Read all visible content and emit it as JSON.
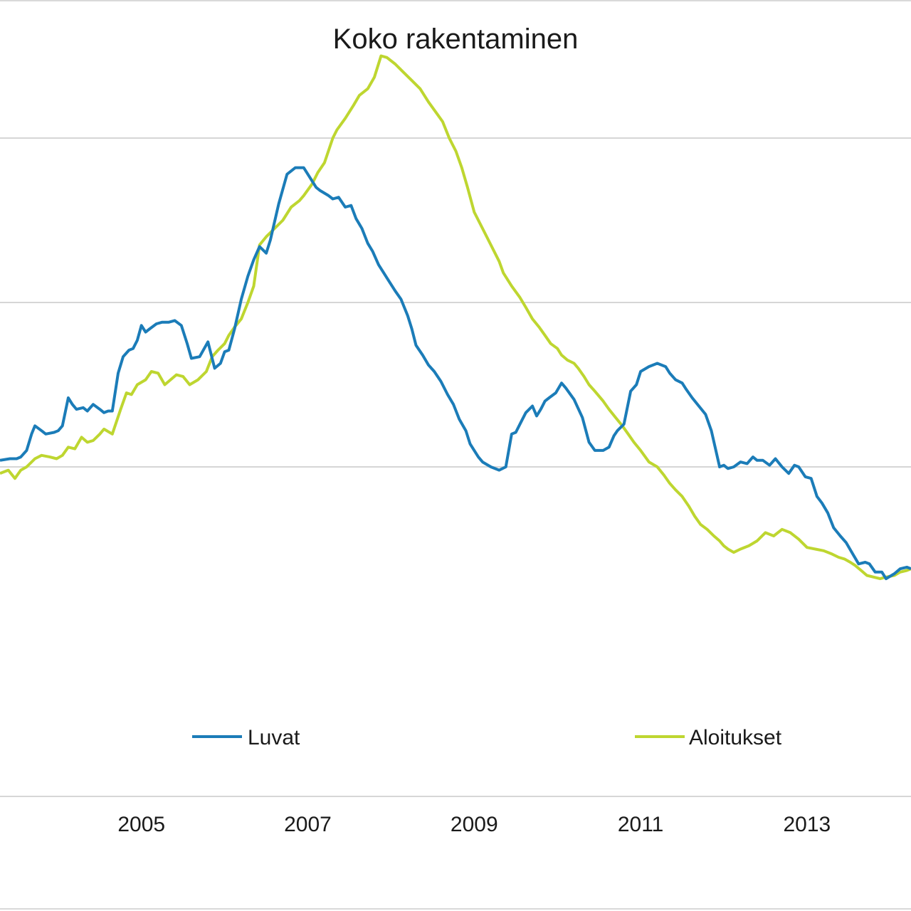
{
  "chart_data": {
    "type": "line",
    "title": "Koko rakentaminen",
    "x_tick_labels": [
      "2005",
      "2007",
      "2009",
      "2011",
      "2013"
    ],
    "x_tick_years": [
      2005,
      2007,
      2009,
      2011,
      2013
    ],
    "xlim": [
      2003.3,
      2014.25
    ],
    "ylim": [
      0,
      4
    ],
    "gridlines": [
      1,
      2,
      3,
      4
    ],
    "grid": true,
    "legend_position": "bottom",
    "colors": {
      "Luvat": "#1B7CB8",
      "Aloitukset": "#BED630"
    },
    "series": [
      {
        "name": "Luvat",
        "x": [
          2003.3,
          2003.42,
          2003.5,
          2003.55,
          2003.62,
          2003.68,
          2003.72,
          2003.8,
          2003.85,
          2003.95,
          2004.0,
          2004.05,
          2004.12,
          2004.17,
          2004.22,
          2004.3,
          2004.35,
          2004.42,
          2004.5,
          2004.55,
          2004.6,
          2004.65,
          2004.72,
          2004.78,
          2004.85,
          2004.9,
          2004.95,
          2005.0,
          2005.05,
          2005.1,
          2005.18,
          2005.25,
          2005.33,
          2005.4,
          2005.48,
          2005.55,
          2005.6,
          2005.7,
          2005.8,
          2005.88,
          2005.95,
          2006.0,
          2006.05,
          2006.12,
          2006.2,
          2006.28,
          2006.35,
          2006.42,
          2006.5,
          2006.55,
          2006.65,
          2006.75,
          2006.85,
          2006.95,
          2007.05,
          2007.1,
          2007.15,
          2007.25,
          2007.3,
          2007.37,
          2007.45,
          2007.52,
          2007.58,
          2007.65,
          2007.72,
          2007.78,
          2007.85,
          2007.95,
          2008.05,
          2008.12,
          2008.2,
          2008.25,
          2008.3,
          2008.38,
          2008.45,
          2008.52,
          2008.6,
          2008.68,
          2008.75,
          2008.82,
          2008.9,
          2008.95,
          2009.05,
          2009.1,
          2009.2,
          2009.3,
          2009.38,
          2009.45,
          2009.5,
          2009.57,
          2009.62,
          2009.7,
          2009.75,
          2009.8,
          2009.85,
          2009.9,
          2009.98,
          2010.05,
          2010.1,
          2010.2,
          2010.3,
          2010.38,
          2010.45,
          2010.55,
          2010.62,
          2010.68,
          2010.72,
          2010.8,
          2010.88,
          2010.95,
          2011.0,
          2011.1,
          2011.2,
          2011.3,
          2011.35,
          2011.42,
          2011.5,
          2011.55,
          2011.62,
          2011.7,
          2011.78,
          2011.85,
          2011.9,
          2011.95,
          2012.0,
          2012.05,
          2012.12,
          2012.2,
          2012.28,
          2012.35,
          2012.4,
          2012.47,
          2012.55,
          2012.62,
          2012.7,
          2012.78,
          2012.85,
          2012.9,
          2012.98,
          2013.05,
          2013.12,
          2013.18,
          2013.25,
          2013.32,
          2013.4,
          2013.47,
          2013.55,
          2013.62,
          2013.7,
          2013.75,
          2013.82,
          2013.9,
          2013.95,
          2014.05,
          2014.12,
          2014.2,
          2014.25
        ],
        "y": [
          1.04,
          1.05,
          1.05,
          1.06,
          1.1,
          1.2,
          1.25,
          1.22,
          1.2,
          1.21,
          1.22,
          1.25,
          1.42,
          1.38,
          1.35,
          1.36,
          1.34,
          1.38,
          1.35,
          1.33,
          1.34,
          1.34,
          1.57,
          1.67,
          1.71,
          1.72,
          1.77,
          1.86,
          1.82,
          1.84,
          1.87,
          1.88,
          1.88,
          1.89,
          1.86,
          1.75,
          1.66,
          1.67,
          1.76,
          1.6,
          1.63,
          1.7,
          1.71,
          1.84,
          2.02,
          2.16,
          2.26,
          2.34,
          2.3,
          2.38,
          2.6,
          2.78,
          2.82,
          2.82,
          2.74,
          2.7,
          2.68,
          2.65,
          2.63,
          2.64,
          2.58,
          2.59,
          2.51,
          2.45,
          2.36,
          2.31,
          2.23,
          2.15,
          2.07,
          2.02,
          1.92,
          1.84,
          1.74,
          1.68,
          1.62,
          1.58,
          1.52,
          1.44,
          1.38,
          1.29,
          1.22,
          1.14,
          1.06,
          1.03,
          1.0,
          0.98,
          1.0,
          1.2,
          1.21,
          1.28,
          1.33,
          1.37,
          1.31,
          1.35,
          1.4,
          1.42,
          1.45,
          1.51,
          1.48,
          1.41,
          1.3,
          1.15,
          1.1,
          1.1,
          1.12,
          1.19,
          1.22,
          1.26,
          1.46,
          1.5,
          1.58,
          1.61,
          1.63,
          1.61,
          1.57,
          1.53,
          1.51,
          1.47,
          1.42,
          1.37,
          1.32,
          1.22,
          1.11,
          1.0,
          1.01,
          0.99,
          1.0,
          1.03,
          1.02,
          1.06,
          1.04,
          1.04,
          1.01,
          1.05,
          1.0,
          0.96,
          1.01,
          1.0,
          0.94,
          0.93,
          0.82,
          0.78,
          0.72,
          0.63,
          0.58,
          0.54,
          0.47,
          0.41,
          0.42,
          0.41,
          0.36,
          0.36,
          0.32,
          0.35,
          0.38,
          0.39,
          0.38
        ]
      },
      {
        "name": "Aloitukset",
        "x": [
          2003.3,
          2003.4,
          2003.48,
          2003.55,
          2003.62,
          2003.72,
          2003.8,
          2003.9,
          2003.98,
          2004.05,
          2004.12,
          2004.2,
          2004.28,
          2004.35,
          2004.42,
          2004.5,
          2004.55,
          2004.65,
          2004.75,
          2004.82,
          2004.88,
          2004.95,
          2005.05,
          2005.12,
          2005.2,
          2005.28,
          2005.35,
          2005.42,
          2005.5,
          2005.58,
          2005.68,
          2005.78,
          2005.85,
          2005.92,
          2006.0,
          2006.05,
          2006.12,
          2006.2,
          2006.28,
          2006.35,
          2006.42,
          2006.5,
          2006.6,
          2006.7,
          2006.8,
          2006.9,
          2006.95,
          2007.05,
          2007.12,
          2007.2,
          2007.3,
          2007.35,
          2007.45,
          2007.55,
          2007.62,
          2007.72,
          2007.8,
          2007.88,
          2007.95,
          2008.05,
          2008.15,
          2008.25,
          2008.35,
          2008.45,
          2008.55,
          2008.62,
          2008.7,
          2008.78,
          2008.85,
          2008.92,
          2009.0,
          2009.1,
          2009.2,
          2009.3,
          2009.35,
          2009.45,
          2009.55,
          2009.62,
          2009.7,
          2009.78,
          2009.85,
          2009.92,
          2010.0,
          2010.05,
          2010.12,
          2010.2,
          2010.25,
          2010.32,
          2010.38,
          2010.45,
          2010.55,
          2010.62,
          2010.7,
          2010.78,
          2010.85,
          2010.92,
          2011.0,
          2011.1,
          2011.2,
          2011.28,
          2011.35,
          2011.42,
          2011.5,
          2011.58,
          2011.65,
          2011.72,
          2011.8,
          2011.88,
          2011.95,
          2012.0,
          2012.05,
          2012.12,
          2012.2,
          2012.3,
          2012.4,
          2012.5,
          2012.6,
          2012.7,
          2012.8,
          2012.9,
          2013.0,
          2013.1,
          2013.2,
          2013.3,
          2013.38,
          2013.45,
          2013.52,
          2013.58,
          2013.65,
          2013.72,
          2013.8,
          2013.88,
          2013.95,
          2014.05,
          2014.12,
          2014.2,
          2014.25
        ],
        "y": [
          0.96,
          0.98,
          0.93,
          0.98,
          1.0,
          1.05,
          1.07,
          1.06,
          1.05,
          1.07,
          1.12,
          1.11,
          1.18,
          1.15,
          1.16,
          1.2,
          1.23,
          1.2,
          1.35,
          1.45,
          1.44,
          1.5,
          1.53,
          1.58,
          1.57,
          1.5,
          1.53,
          1.56,
          1.55,
          1.5,
          1.53,
          1.58,
          1.67,
          1.71,
          1.75,
          1.8,
          1.85,
          1.9,
          2.0,
          2.1,
          2.35,
          2.4,
          2.45,
          2.5,
          2.58,
          2.62,
          2.65,
          2.72,
          2.79,
          2.85,
          3.0,
          3.05,
          3.12,
          3.2,
          3.26,
          3.3,
          3.37,
          3.5,
          3.49,
          3.45,
          3.4,
          3.35,
          3.3,
          3.22,
          3.15,
          3.1,
          3.0,
          2.92,
          2.82,
          2.7,
          2.55,
          2.45,
          2.35,
          2.25,
          2.18,
          2.1,
          2.03,
          1.97,
          1.9,
          1.85,
          1.8,
          1.75,
          1.72,
          1.68,
          1.65,
          1.63,
          1.6,
          1.55,
          1.5,
          1.46,
          1.4,
          1.35,
          1.3,
          1.25,
          1.2,
          1.15,
          1.1,
          1.03,
          1.0,
          0.95,
          0.9,
          0.86,
          0.82,
          0.76,
          0.7,
          0.65,
          0.62,
          0.58,
          0.55,
          0.52,
          0.5,
          0.48,
          0.5,
          0.52,
          0.55,
          0.6,
          0.58,
          0.62,
          0.6,
          0.56,
          0.51,
          0.5,
          0.49,
          0.47,
          0.45,
          0.44,
          0.42,
          0.4,
          0.37,
          0.34,
          0.33,
          0.32,
          0.33,
          0.34,
          0.36,
          0.37,
          0.38
        ]
      }
    ]
  },
  "legend": [
    {
      "label": "Luvat",
      "color": "#1B7CB8"
    },
    {
      "label": "Aloitukset",
      "color": "#BED630"
    }
  ]
}
